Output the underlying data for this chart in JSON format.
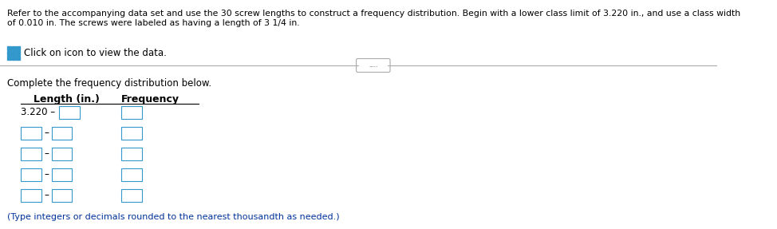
{
  "title_text": "Refer to the accompanying data set and use the 30 screw lengths to construct a frequency distribution. Begin with a lower class limit of 3.220 in., and use a class width\nof 0.010 in. The screws were labeled as having a length of 3 1/4 in.",
  "icon_text": "Click on icon to view the data.",
  "divider_button_text": ".....",
  "subtitle_text": "Complete the frequency distribution below.",
  "col1_header": "Length (in.)",
  "col2_header": "Frequency",
  "first_row_label": "3.220 –",
  "num_input_rows": 5,
  "footer_text": "(Type integers or decimals rounded to the nearest thousandth as needed.)",
  "bg_color": "#ffffff",
  "text_color": "#000000",
  "blue_text_color": "#003399",
  "icon_color": "#3399cc",
  "box_border_color": "#3399cc",
  "divider_color": "#aaaaaa"
}
